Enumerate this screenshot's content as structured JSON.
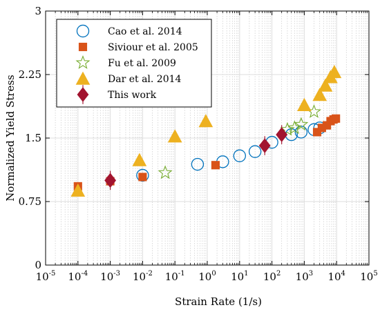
{
  "chart_data": {
    "type": "scatter",
    "xlabel": "Strain Rate (1/s)",
    "ylabel": "Normalized Yield Stress",
    "xscale": "log",
    "xlim": [
      1e-05,
      100000
    ],
    "ylim": [
      0,
      3
    ],
    "x_tick_exponents": [
      "-5",
      "-4",
      "-3",
      "-2",
      "-1",
      "0",
      "1",
      "2",
      "3",
      "4",
      "5"
    ],
    "x_tick_base": "10",
    "y_ticks": [
      "0",
      "0.75",
      "1.5",
      "2.25",
      "3"
    ],
    "grid": true,
    "legend_position": "top-left",
    "series": [
      {
        "name": "Cao et al. 2014",
        "marker": "circle-open",
        "color": "#0072BD",
        "points": [
          [
            0.01,
            1.06
          ],
          [
            0.5,
            1.19
          ],
          [
            3,
            1.22
          ],
          [
            10,
            1.29
          ],
          [
            30,
            1.34
          ],
          [
            100,
            1.45
          ],
          [
            400,
            1.54
          ],
          [
            800,
            1.57
          ],
          [
            2000,
            1.6
          ],
          [
            3000,
            1.62
          ]
        ]
      },
      {
        "name": "Siviour et al. 2005",
        "marker": "square",
        "color": "#D95319",
        "points": [
          [
            0.0001,
            0.93
          ],
          [
            0.001,
            0.99
          ],
          [
            0.01,
            1.04
          ],
          [
            1.8,
            1.18
          ],
          [
            2500,
            1.57
          ],
          [
            3500,
            1.62
          ],
          [
            5000,
            1.65
          ],
          [
            6500,
            1.7
          ],
          [
            8000,
            1.72
          ],
          [
            9500,
            1.73
          ]
        ]
      },
      {
        "name": "Fu et al. 2009",
        "marker": "star-open",
        "color": "#77AC30",
        "points": [
          [
            0.05,
            1.09
          ],
          [
            300,
            1.6
          ],
          [
            500,
            1.62
          ],
          [
            800,
            1.66
          ],
          [
            2000,
            1.81
          ]
        ]
      },
      {
        "name": "Dar et al. 2014",
        "marker": "triangle",
        "color": "#EDB120",
        "points": [
          [
            0.0001,
            0.88
          ],
          [
            0.008,
            1.24
          ],
          [
            0.1,
            1.52
          ],
          [
            0.9,
            1.7
          ],
          [
            1000,
            1.89
          ],
          [
            3000,
            2.01
          ],
          [
            4500,
            2.12
          ],
          [
            6500,
            2.22
          ],
          [
            8500,
            2.28
          ]
        ]
      },
      {
        "name": "This work",
        "marker": "diamond",
        "color": "#A2142F",
        "points": [
          [
            0.001,
            1.0
          ],
          [
            60,
            1.41
          ],
          [
            200,
            1.54
          ]
        ]
      }
    ]
  }
}
